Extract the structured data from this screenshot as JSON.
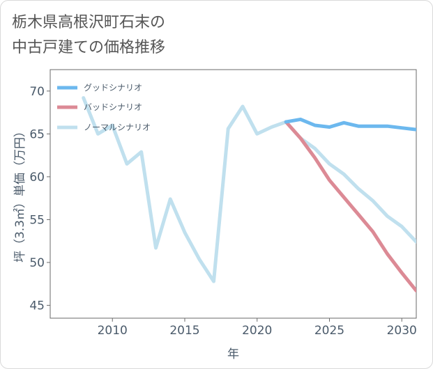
{
  "page": {
    "title_line1": "栃木県高根沢町石末の",
    "title_line2": "中古戸建ての価格推移"
  },
  "colors": {
    "good": "#6cb8ee",
    "bad": "#dc8a95",
    "normal": "#c0e0ee",
    "axis_text": "#4a5a6a",
    "plot_border": "#6a6a6a"
  },
  "chart_data": {
    "type": "line",
    "title": "栃木県高根沢町石末の中古戸建ての価格推移",
    "xlabel": "年",
    "ylabel": "坪（3.3㎡）単価（万円）",
    "xlim": [
      2005.7,
      2031
    ],
    "ylim": [
      43.5,
      72.5
    ],
    "xticks": [
      2010,
      2015,
      2020,
      2025,
      2030
    ],
    "yticks": [
      45,
      50,
      55,
      60,
      65,
      70
    ],
    "grid": false,
    "legend_position": "top-left",
    "series": [
      {
        "name": "グッドシナリオ",
        "key": "good",
        "x": [
          2022,
          2023,
          2024,
          2025,
          2026,
          2027,
          2028,
          2029,
          2030,
          2031
        ],
        "values": [
          66.4,
          66.7,
          66.0,
          65.8,
          66.3,
          65.9,
          65.9,
          65.9,
          65.7,
          65.5
        ]
      },
      {
        "name": "バッドシナリオ",
        "key": "bad",
        "x": [
          2022,
          2023,
          2024,
          2025,
          2026,
          2027,
          2028,
          2029,
          2030,
          2031
        ],
        "values": [
          66.4,
          64.5,
          62.2,
          59.6,
          57.6,
          55.6,
          53.6,
          51.0,
          48.8,
          46.7
        ]
      },
      {
        "name": "ノーマルシナリオ",
        "key": "normal",
        "x": [
          2008,
          2009,
          2010,
          2011,
          2012,
          2013,
          2014,
          2015,
          2016,
          2017,
          2018,
          2019,
          2020,
          2021,
          2022,
          2023,
          2024,
          2025,
          2026,
          2027,
          2028,
          2029,
          2030,
          2031
        ],
        "values": [
          69.2,
          65.0,
          66.0,
          61.5,
          62.9,
          51.7,
          57.4,
          53.5,
          50.4,
          47.8,
          65.6,
          68.2,
          65.0,
          65.8,
          66.4,
          64.5,
          63.3,
          61.5,
          60.3,
          58.6,
          57.2,
          55.4,
          54.2,
          52.4
        ]
      }
    ]
  }
}
